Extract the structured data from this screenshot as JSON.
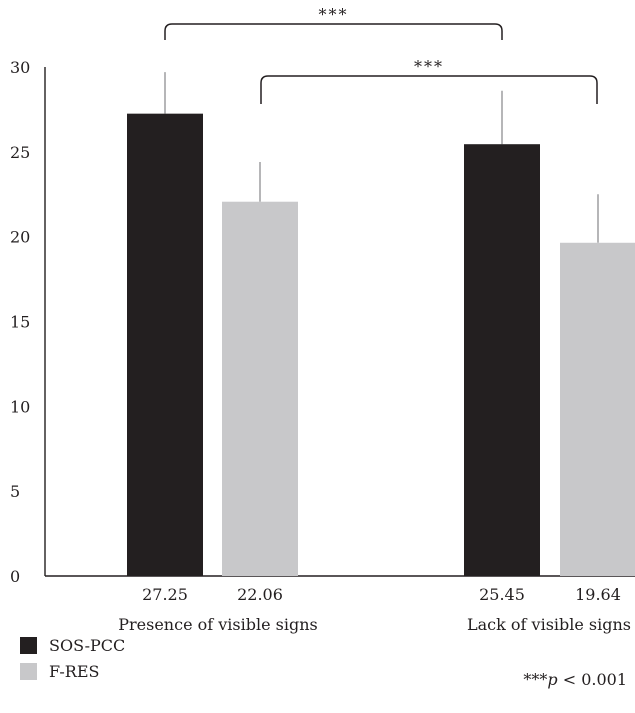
{
  "chart_data": {
    "type": "bar",
    "categories": [
      "Presence of visible signs",
      "Lack of visible signs"
    ],
    "series": [
      {
        "name": "SOS-PCC",
        "color": "#231f20",
        "values": [
          27.25,
          25.45
        ],
        "error_upper": [
          29.7,
          28.6
        ],
        "value_labels": [
          "27.25",
          "25.45"
        ]
      },
      {
        "name": "F-RES",
        "color": "#c8c8ca",
        "values": [
          22.06,
          19.64
        ],
        "error_upper": [
          24.4,
          22.5
        ],
        "value_labels": [
          "22.06",
          "19.64"
        ]
      }
    ],
    "ylim": [
      0,
      30
    ],
    "yticks": [
      "0",
      "5",
      "10",
      "15",
      "20",
      "25",
      "30"
    ],
    "grid": false,
    "legend_position": "bottom-left",
    "significance": [
      {
        "label": "***",
        "from": "SOS-PCC / Presence of visible signs",
        "to": "SOS-PCC / Lack of visible signs"
      },
      {
        "label": "***",
        "from": "F-RES / Presence of visible signs",
        "to": "F-RES / Lack of visible signs"
      }
    ],
    "footnote": {
      "stars": "***",
      "p": "p",
      "rest": " < 0.001"
    }
  }
}
